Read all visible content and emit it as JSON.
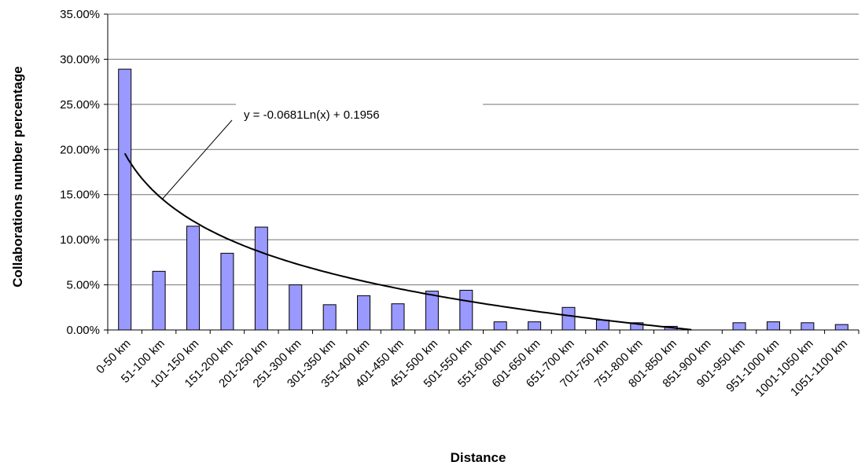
{
  "chart_data": {
    "type": "bar",
    "xlabel": "Distance",
    "ylabel": "Collaborations number percentage",
    "ylim": [
      0,
      0.35
    ],
    "yticks": [
      "0.00%",
      "5.00%",
      "10.00%",
      "15.00%",
      "20.00%",
      "25.00%",
      "30.00%",
      "35.00%"
    ],
    "grid": true,
    "categories": [
      "0-50 km",
      "51-100 km",
      "101-150 km",
      "151-200 km",
      "201-250 km",
      "251-300 km",
      "301-350 km",
      "351-400 km",
      "401-450 km",
      "451-500 km",
      "501-550 km",
      "551-600 km",
      "601-650 km",
      "651-700 km",
      "701-750 km",
      "751-800 km",
      "801-850 km",
      "851-900 km",
      "901-950 km",
      "951-1000 km",
      "1001-1050 km",
      "1051-1100 km"
    ],
    "values": [
      0.289,
      0.065,
      0.115,
      0.085,
      0.114,
      0.05,
      0.028,
      0.038,
      0.029,
      0.043,
      0.044,
      0.009,
      0.009,
      0.025,
      0.011,
      0.008,
      0.004,
      0.0,
      0.008,
      0.009,
      0.008,
      0.006
    ],
    "bar_color": "#9999ff",
    "trendline": {
      "type": "logarithmic",
      "a": -0.0681,
      "b": 0.1956,
      "equation_label": "y = -0.0681Ln(x) + 0.1956",
      "color": "#000000"
    }
  }
}
